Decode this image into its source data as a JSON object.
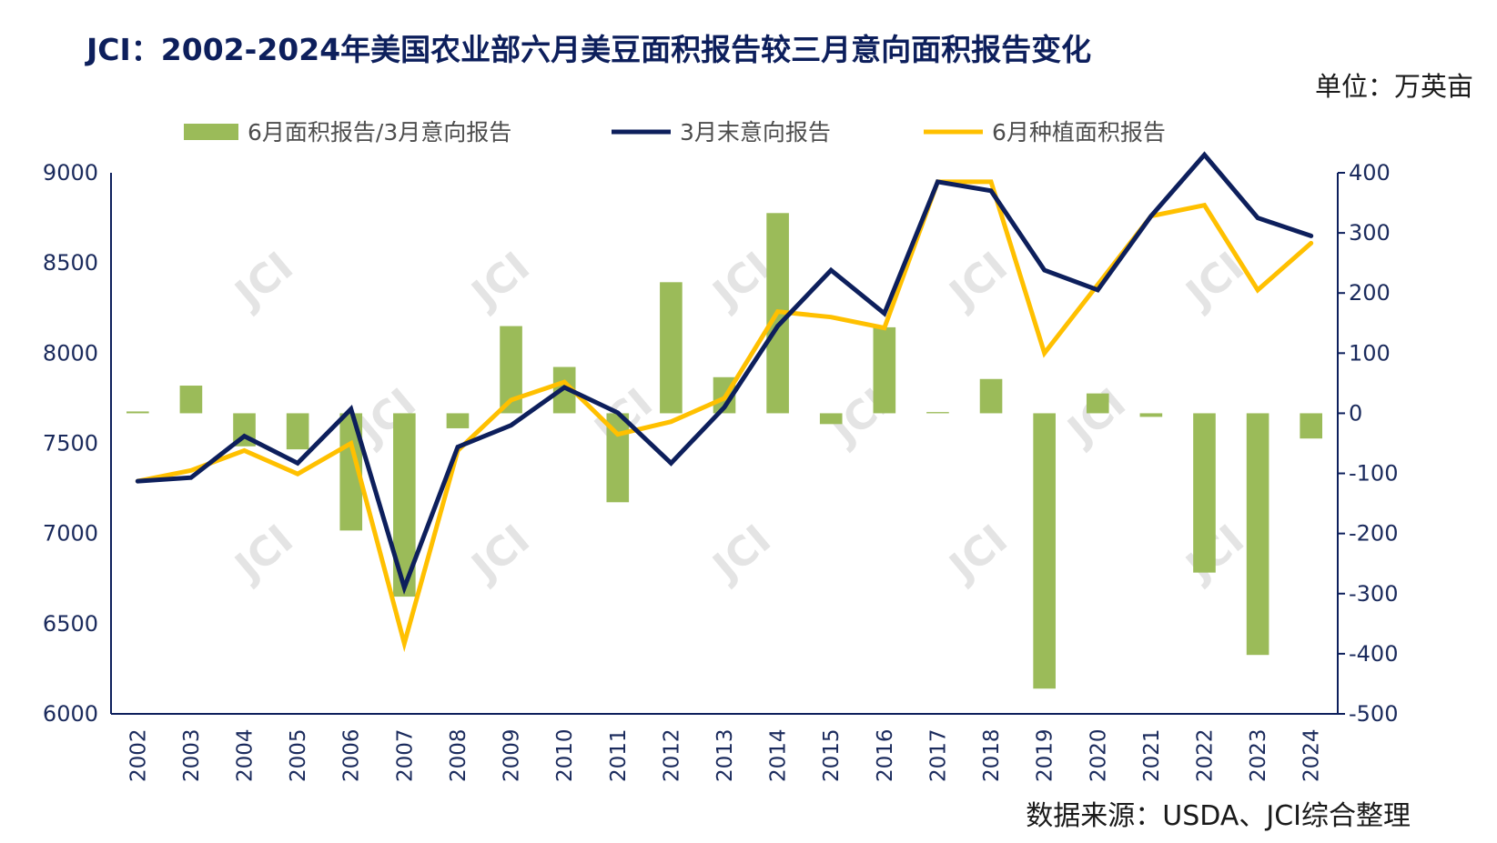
{
  "title": "JCI：2002-2024年美国农业部六月美豆面积报告较三月意向面积报告变化",
  "unit": "单位：万英亩",
  "source": "数据来源：USDA、JCI综合整理",
  "watermark": "JCI",
  "colors": {
    "bar": "#9bbb59",
    "intent_line": "#0d1f5c",
    "june_line": "#ffc000",
    "axis": "#0d1f5c"
  },
  "chart_data": {
    "type": "bar+line",
    "categories": [
      "2002",
      "2003",
      "2004",
      "2005",
      "2006",
      "2007",
      "2008",
      "2009",
      "2010",
      "2011",
      "2012",
      "2013",
      "2014",
      "2015",
      "2016",
      "2017",
      "2018",
      "2019",
      "2020",
      "2021",
      "2022",
      "2023",
      "2024"
    ],
    "left_axis": {
      "ylim": [
        6000,
        9000
      ],
      "ticks": [
        6000,
        6500,
        7000,
        7500,
        8000,
        8500,
        9000
      ]
    },
    "right_axis": {
      "ylim": [
        -500,
        400
      ],
      "ticks": [
        -500,
        -400,
        -300,
        -200,
        -100,
        0,
        100,
        200,
        300,
        400
      ]
    },
    "legend": [
      "6月面积报告/3月意向报告",
      "3月末意向报告",
      "6月种植面积报告"
    ],
    "series": [
      {
        "name": "6月面积报告/3月意向报告",
        "type": "bar",
        "axis": "right",
        "values": [
          3,
          46,
          -55,
          -60,
          -195,
          -305,
          -25,
          145,
          77,
          -148,
          218,
          60,
          333,
          -18,
          143,
          2,
          57,
          -458,
          33,
          -6,
          -265,
          -402,
          -42
        ]
      },
      {
        "name": "3月末意向报告",
        "type": "line",
        "axis": "left",
        "values": [
          7290,
          7310,
          7540,
          7390,
          7690,
          6700,
          7480,
          7600,
          7810,
          7670,
          7390,
          7700,
          8150,
          8460,
          8220,
          8950,
          8900,
          8460,
          8350,
          8760,
          9100,
          8750,
          8650
        ]
      },
      {
        "name": "6月种植面积报告",
        "type": "line",
        "axis": "left",
        "values": [
          7290,
          7350,
          7460,
          7330,
          7500,
          6390,
          7460,
          7740,
          7840,
          7550,
          7620,
          7750,
          8230,
          8200,
          8140,
          8950,
          8950,
          8000,
          8380,
          8760,
          8820,
          8350,
          8610
        ]
      }
    ]
  }
}
